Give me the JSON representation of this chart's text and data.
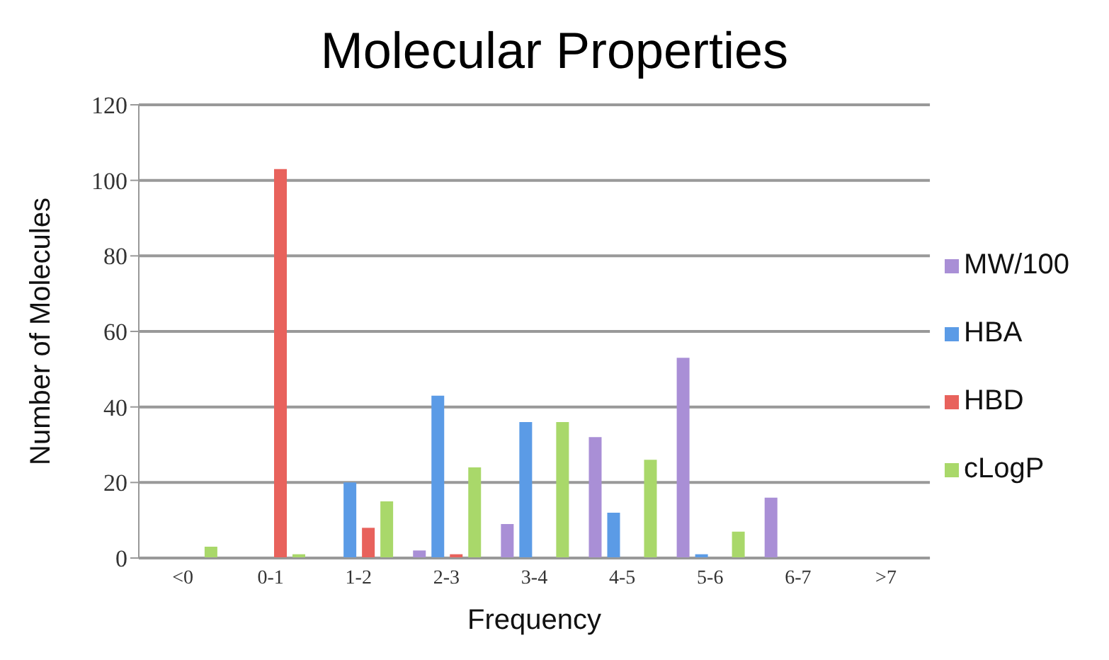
{
  "chart_data": {
    "type": "bar",
    "title": "Molecular Properties",
    "xlabel": "Frequency",
    "ylabel": "Number of Molecules",
    "categories": [
      "<0",
      "0-1",
      "1-2",
      "2-3",
      "3-4",
      "4-5",
      "5-6",
      "6-7",
      ">7"
    ],
    "series": [
      {
        "name": "MW/100",
        "color": "#a98fd6",
        "values": [
          0,
          0,
          0,
          2,
          9,
          32,
          53,
          16,
          0
        ]
      },
      {
        "name": "HBA",
        "color": "#5b9be6",
        "values": [
          0,
          0,
          20,
          43,
          36,
          12,
          1,
          0,
          0
        ]
      },
      {
        "name": "HBD",
        "color": "#e8625c",
        "values": [
          0,
          103,
          8,
          1,
          0,
          0,
          0,
          0,
          0
        ]
      },
      {
        "name": "cLogP",
        "color": "#a9d86a",
        "values": [
          3,
          1,
          15,
          24,
          36,
          26,
          7,
          0,
          0
        ]
      }
    ],
    "ylim": [
      0,
      120
    ],
    "yticks": [
      0,
      20,
      40,
      60,
      80,
      100,
      120
    ],
    "grid": "y",
    "legend": "right"
  }
}
